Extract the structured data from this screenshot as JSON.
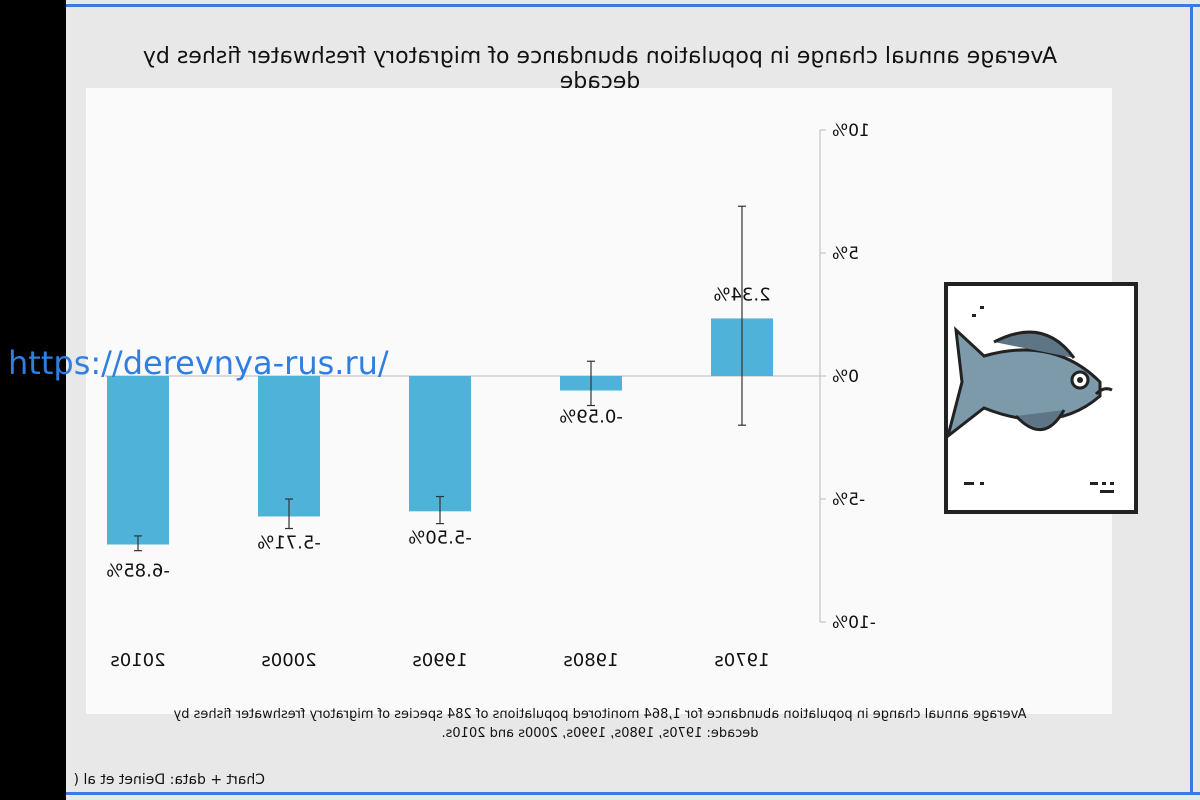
{
  "watermark_text": "https://derevnya-rus.ru/",
  "credit": "Chart + data: Deinet et al (",
  "caption": "Average annual change in population abundance for 1,864 monitored populations of 284 species of migratory freshwater fishes by decade: 1970s, 1980s, 1990s, 2000s and 2010s.",
  "fish_illustration": "fish-icon",
  "colors": {
    "bar": "#4fb3d9",
    "frame_border": "#3b7be0",
    "watermark": "#2f7fe0"
  },
  "chart_data": {
    "type": "bar",
    "title": "Average annual change in population abundance of migratory freshwater fishes by decade",
    "categories": [
      "1970s",
      "1980s",
      "1990s",
      "2000s",
      "2010s"
    ],
    "values": [
      2.34,
      -0.59,
      -5.5,
      -5.71,
      -6.85
    ],
    "value_labels": [
      "2.34%",
      "-0.59%",
      "-5.50%",
      "-5.71%",
      "-6.85%"
    ],
    "error_bars": [
      [
        -2.0,
        6.9
      ],
      [
        -1.2,
        0.6
      ],
      [
        -6.0,
        -4.9
      ],
      [
        -6.2,
        -5.0
      ],
      [
        -7.1,
        -6.5
      ]
    ],
    "ylim": [
      -10,
      10
    ],
    "yticks": [
      10,
      5,
      0,
      -5,
      -10
    ],
    "ytick_labels": [
      "10%",
      "5%",
      "0%",
      "-5%",
      "-10%"
    ],
    "xlabel": "",
    "ylabel": "",
    "grid": false,
    "mirrored": true
  }
}
